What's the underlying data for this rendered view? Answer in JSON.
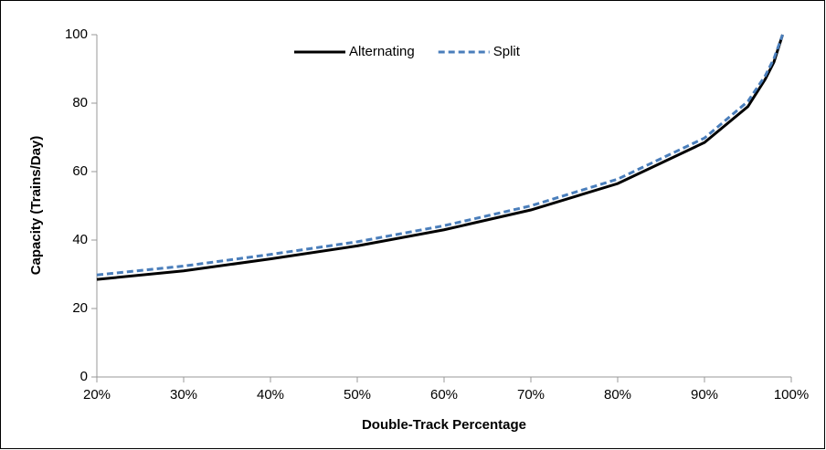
{
  "chart_data": {
    "type": "line",
    "x_label": "Double-Track Percentage",
    "y_label": "Capacity (Trains/Day)",
    "x": [
      20,
      30,
      40,
      50,
      60,
      70,
      80,
      90,
      95,
      97,
      98,
      99
    ],
    "series": [
      {
        "name": "Alternating",
        "color": "#000000",
        "dash": false,
        "values": [
          28.5,
          31,
          34.5,
          38.3,
          43,
          48.8,
          56.5,
          68.5,
          79,
          87,
          92,
          100
        ]
      },
      {
        "name": "Split",
        "color": "#4a7ebb",
        "dash": true,
        "values": [
          29.8,
          32.4,
          35.8,
          39.5,
          44.2,
          50,
          57.8,
          69.8,
          80.5,
          88,
          93,
          100
        ]
      }
    ],
    "xlim": [
      20,
      100
    ],
    "xticks": [
      {
        "value": 20,
        "label": "20%"
      },
      {
        "value": 30,
        "label": "30%"
      },
      {
        "value": 40,
        "label": "40%"
      },
      {
        "value": 50,
        "label": "50%"
      },
      {
        "value": 60,
        "label": "60%"
      },
      {
        "value": 70,
        "label": "70%"
      },
      {
        "value": 80,
        "label": "80%"
      },
      {
        "value": 90,
        "label": "90%"
      },
      {
        "value": 100,
        "label": "100%"
      }
    ],
    "ylim": [
      0,
      100
    ],
    "yticks": [
      0,
      20,
      40,
      60,
      80,
      100
    ],
    "grid": false,
    "legend": "top"
  }
}
